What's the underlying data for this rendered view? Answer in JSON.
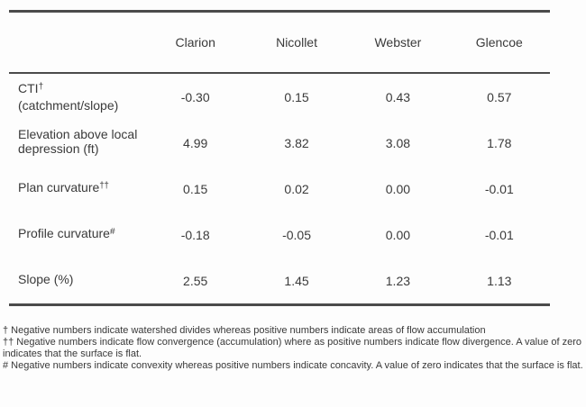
{
  "table": {
    "columns": [
      "Clarion",
      "Nicollet",
      "Webster",
      "Glencoe"
    ],
    "rows": [
      {
        "pre": "CTI",
        "sup": "†",
        "post": " (catchment/slope)",
        "values": [
          "-0.30",
          "0.15",
          "0.43",
          "0.57"
        ]
      },
      {
        "pre": "Elevation above local depression (ft)",
        "sup": "",
        "post": "",
        "values": [
          "4.99",
          "3.82",
          "3.08",
          "1.78"
        ]
      },
      {
        "pre": "Plan curvature",
        "sup": "††",
        "post": "",
        "values": [
          "0.15",
          "0.02",
          "0.00",
          "-0.01"
        ]
      },
      {
        "pre": "Profile curvature",
        "sup": "#",
        "post": "",
        "values": [
          "-0.18",
          "-0.05",
          "0.00",
          "-0.01"
        ]
      },
      {
        "pre": "Slope (%)",
        "sup": "",
        "post": "",
        "values": [
          "2.55",
          "1.45",
          "1.23",
          "1.13"
        ]
      }
    ]
  },
  "footnotes": [
    "† Negative numbers indicate watershed divides whereas positive numbers indicate areas of flow accumulation",
    "†† Negative numbers indicate flow convergence (accumulation) where as positive numbers indicate flow divergence.  A value of zero indicates that the surface is flat.",
    "# Negative numbers indicate convexity whereas positive numbers indicate concavity. A value of zero indicates that the surface is flat."
  ],
  "colors": {
    "rule": "#4b4b4b",
    "text": "#3a3a3a",
    "background": "#fdfdfd"
  }
}
